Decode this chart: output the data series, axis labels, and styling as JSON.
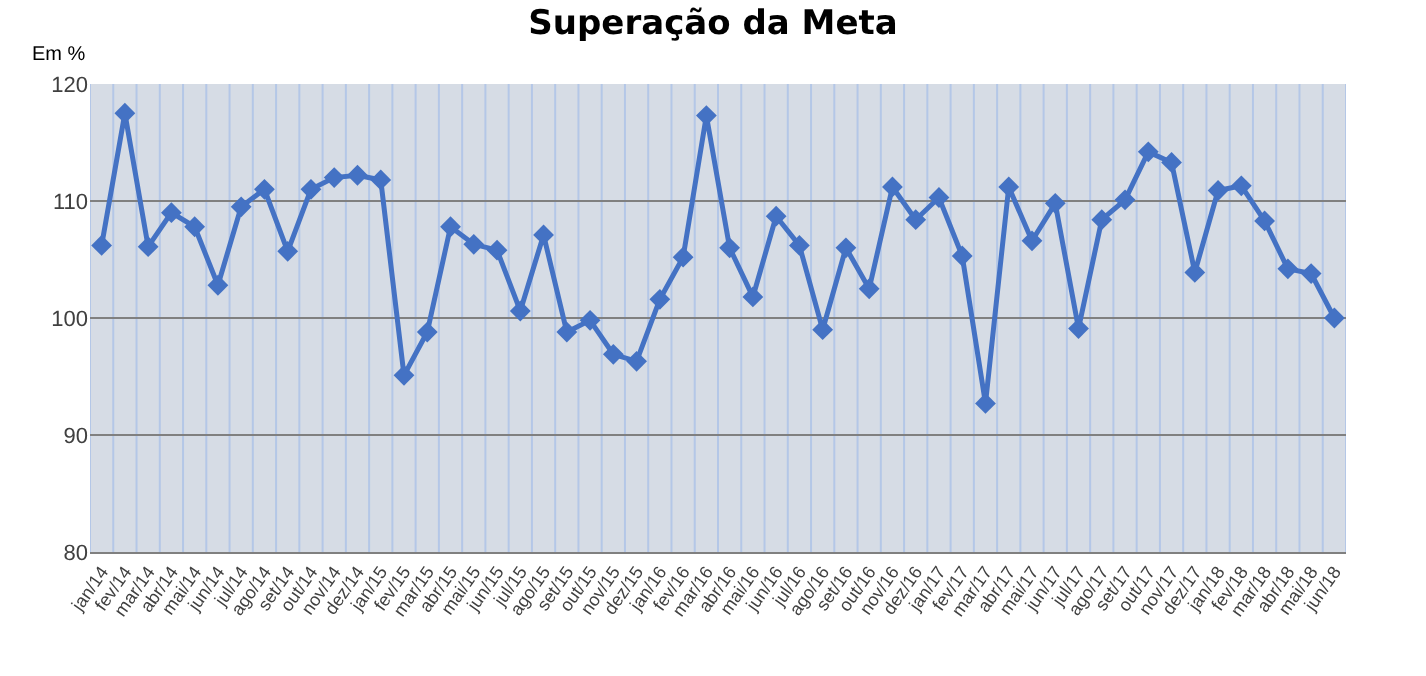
{
  "chart_data": {
    "type": "line",
    "title": "Superação da Meta",
    "ylabel": "Em %",
    "categories": [
      "jan/14",
      "fev/14",
      "mar/14",
      "abr/14",
      "mai/14",
      "jun/14",
      "jul/14",
      "ago/14",
      "set/14",
      "out/14",
      "nov/14",
      "dez/14",
      "jan/15",
      "fev/15",
      "mar/15",
      "abr/15",
      "mai/15",
      "jun/15",
      "jul/15",
      "ago/15",
      "set/15",
      "out/15",
      "nov/15",
      "dez/15",
      "jan/16",
      "fev/16",
      "mar/16",
      "abr/16",
      "mai/16",
      "jun/16",
      "jul/16",
      "ago/16",
      "set/16",
      "out/16",
      "nov/16",
      "dez/16",
      "jan/17",
      "fev/17",
      "mar/17",
      "abr/17",
      "mai/17",
      "jun/17",
      "jul/17",
      "ago/17",
      "set/17",
      "out/17",
      "nov/17",
      "dez/17",
      "jan/18",
      "fev/18",
      "mar/18",
      "abr/18",
      "mai/18",
      "jun/18"
    ],
    "series": [
      {
        "color": "#4472c4",
        "values": [
          106.2,
          117.5,
          106.1,
          109,
          107.8,
          102.8,
          109.5,
          111,
          105.7,
          111,
          112,
          112.2,
          111.8,
          95.1,
          98.8,
          107.8,
          106.3,
          105.8,
          100.6,
          107.1,
          98.8,
          99.8,
          96.9,
          96.3,
          101.6,
          105.2,
          117.3,
          106,
          101.8,
          108.7,
          106.2,
          99,
          106,
          102.5,
          111.2,
          108.4,
          110.3,
          105.3,
          92.7,
          111.2,
          106.6,
          109.8,
          99.1,
          108.4,
          110.1,
          114.2,
          113.3,
          103.9,
          110.9,
          111.3,
          108.3,
          104.2,
          103.8,
          100
        ]
      }
    ],
    "ylim": [
      80,
      120
    ],
    "yticks": [
      80,
      90,
      100,
      110,
      120
    ],
    "grid": true,
    "marker": "diamond",
    "line_style": "solid"
  }
}
